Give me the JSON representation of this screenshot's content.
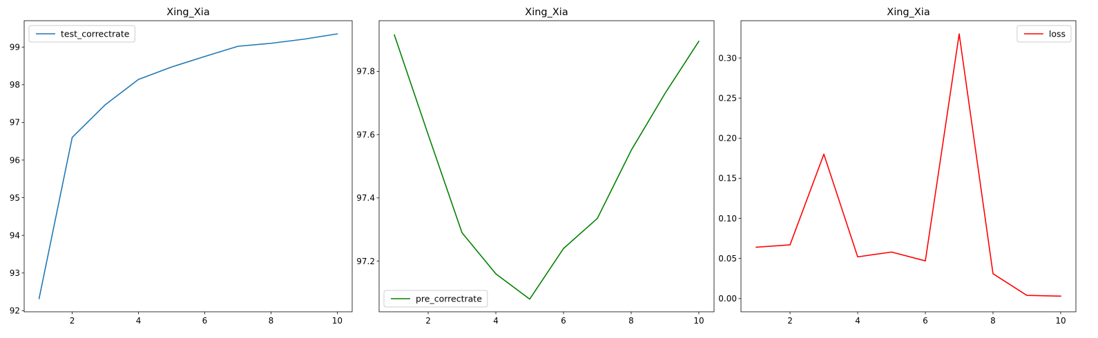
{
  "chart_data": [
    {
      "type": "line",
      "title": "Xing_Xia",
      "xlabel": "",
      "ylabel": "",
      "x": [
        1,
        2,
        3,
        4,
        5,
        6,
        7,
        8,
        9,
        10
      ],
      "series": [
        {
          "name": "test_correctrate",
          "color": "#1f77b4",
          "values": [
            92.32,
            96.6,
            97.47,
            98.14,
            98.47,
            98.75,
            99.02,
            99.1,
            99.21,
            99.35
          ]
        }
      ],
      "xlim": [
        0.55,
        10.45
      ],
      "ylim": [
        91.97,
        99.7
      ],
      "xticks": [
        2,
        4,
        6,
        8,
        10
      ],
      "yticks": [
        92,
        93,
        94,
        95,
        96,
        97,
        98,
        99
      ],
      "ytick_decimals": 0,
      "legend": "upper-left",
      "grid": false
    },
    {
      "type": "line",
      "title": "Xing_Xia",
      "xlabel": "",
      "ylabel": "",
      "x": [
        1,
        2,
        3,
        4,
        5,
        6,
        7,
        8,
        9,
        10
      ],
      "series": [
        {
          "name": "pre_correctrate",
          "color": "#008000",
          "values": [
            97.915,
            97.6,
            97.29,
            97.16,
            97.08,
            97.24,
            97.335,
            97.55,
            97.73,
            97.895
          ]
        }
      ],
      "xlim": [
        0.55,
        10.45
      ],
      "ylim": [
        97.04,
        97.96
      ],
      "xticks": [
        2,
        4,
        6,
        8,
        10
      ],
      "yticks": [
        97.2,
        97.4,
        97.6,
        97.8
      ],
      "ytick_decimals": 1,
      "legend": "lower-left",
      "grid": false
    },
    {
      "type": "line",
      "title": "Xing_Xia",
      "xlabel": "",
      "ylabel": "",
      "x": [
        1,
        2,
        3,
        4,
        5,
        6,
        7,
        8,
        9,
        10
      ],
      "series": [
        {
          "name": "loss",
          "color": "#ff0000",
          "values": [
            0.064,
            0.067,
            0.18,
            0.052,
            0.058,
            0.047,
            0.33,
            0.031,
            0.004,
            0.003
          ]
        }
      ],
      "xlim": [
        0.55,
        10.45
      ],
      "ylim": [
        -0.0165,
        0.3465
      ],
      "xticks": [
        2,
        4,
        6,
        8,
        10
      ],
      "yticks": [
        0.0,
        0.05,
        0.1,
        0.15,
        0.2,
        0.25,
        0.3
      ],
      "ytick_decimals": 2,
      "legend": "upper-right",
      "grid": false
    }
  ]
}
